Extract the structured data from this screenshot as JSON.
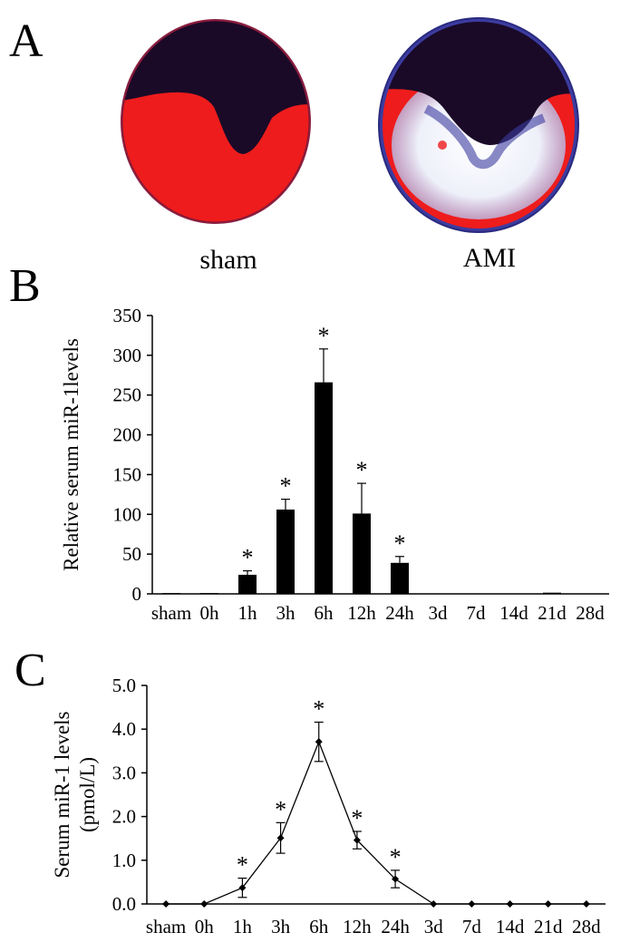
{
  "panels": {
    "a": {
      "letter": "A",
      "images": [
        {
          "caption": "sham"
        },
        {
          "caption": "AMI"
        }
      ]
    },
    "b": {
      "letter": "B"
    },
    "c": {
      "letter": "C"
    }
  },
  "colors": {
    "ink": "#000000",
    "tissue_red": "#ee1c1c",
    "tissue_dark": "#1a0a28",
    "tissue_white": "#f4f2f6",
    "tissue_blue": "#3c3ca0"
  },
  "chart_data": [
    {
      "type": "bar",
      "ylabel": "Relative serum miR-1levels",
      "xlabel": "",
      "ylim": [
        0,
        350
      ],
      "yticks": [
        0,
        50,
        100,
        150,
        200,
        250,
        300,
        350
      ],
      "categories": [
        "sham",
        "0h",
        "1h",
        "3h",
        "6h",
        "12h",
        "24h",
        "3d",
        "7d",
        "14d",
        "21d",
        "28d"
      ],
      "values": [
        1,
        1,
        24,
        106,
        266,
        101,
        39,
        0.5,
        0.5,
        0.5,
        1.5,
        0.5
      ],
      "errors": [
        0,
        0,
        5,
        13,
        42,
        38,
        8,
        0,
        0,
        0,
        0,
        0
      ],
      "significant": [
        false,
        false,
        true,
        true,
        true,
        true,
        true,
        false,
        false,
        false,
        false,
        false
      ],
      "marker": "*"
    },
    {
      "type": "line",
      "ylabel": "Serum miR-1 levels (pmol/L)",
      "ylabel_lines": [
        "Serum miR-1 levels",
        "(pmol/L)"
      ],
      "xlabel": "",
      "ylim": [
        0,
        5
      ],
      "yticks": [
        "0.0",
        "1.0",
        "2.0",
        "3.0",
        "4.0",
        "5.0"
      ],
      "categories": [
        "sham",
        "0h",
        "1h",
        "3h",
        "6h",
        "12h",
        "24h",
        "3d",
        "7d",
        "14d",
        "21d",
        "28d"
      ],
      "values": [
        0,
        0,
        0.37,
        1.51,
        3.71,
        1.46,
        0.57,
        0,
        0,
        0,
        0,
        0
      ],
      "errors": [
        0,
        0,
        0.22,
        0.35,
        0.45,
        0.2,
        0.2,
        0,
        0,
        0,
        0,
        0
      ],
      "significant": [
        false,
        false,
        true,
        true,
        true,
        true,
        true,
        false,
        false,
        false,
        false,
        false
      ],
      "marker": "*"
    }
  ]
}
